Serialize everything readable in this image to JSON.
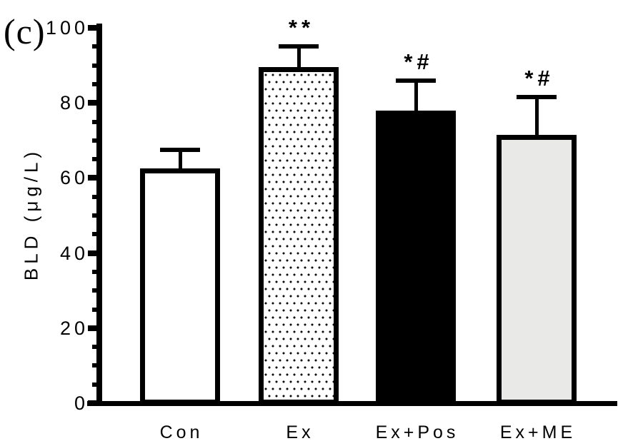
{
  "figure": {
    "panel_label": "(c)"
  },
  "chart_data": {
    "type": "bar",
    "title": "",
    "xlabel": "",
    "ylabel": "BLD (μg/L)",
    "categories": [
      "Con",
      "Ex",
      "Ex+Pos",
      "Ex+ME"
    ],
    "values": [
      62.5,
      89.5,
      78,
      71.5
    ],
    "errors": [
      5,
      5.5,
      8,
      10
    ],
    "errors_upper_only": true,
    "annotations": [
      "",
      "**",
      "*#",
      "*#"
    ],
    "bar_fills": [
      "white",
      "dotted-pattern",
      "black",
      "light-gray"
    ],
    "ylim": [
      0,
      100
    ],
    "yticks": [
      0,
      20,
      40,
      60,
      80,
      100
    ],
    "minor_tick_step": 5,
    "grid": "off",
    "legend": "none",
    "colors": {
      "foreground": "#000000",
      "background": "#ffffff",
      "white_fill": "#ffffff",
      "black_fill": "#000000",
      "light_gray_fill": "#e9e9e8"
    }
  }
}
